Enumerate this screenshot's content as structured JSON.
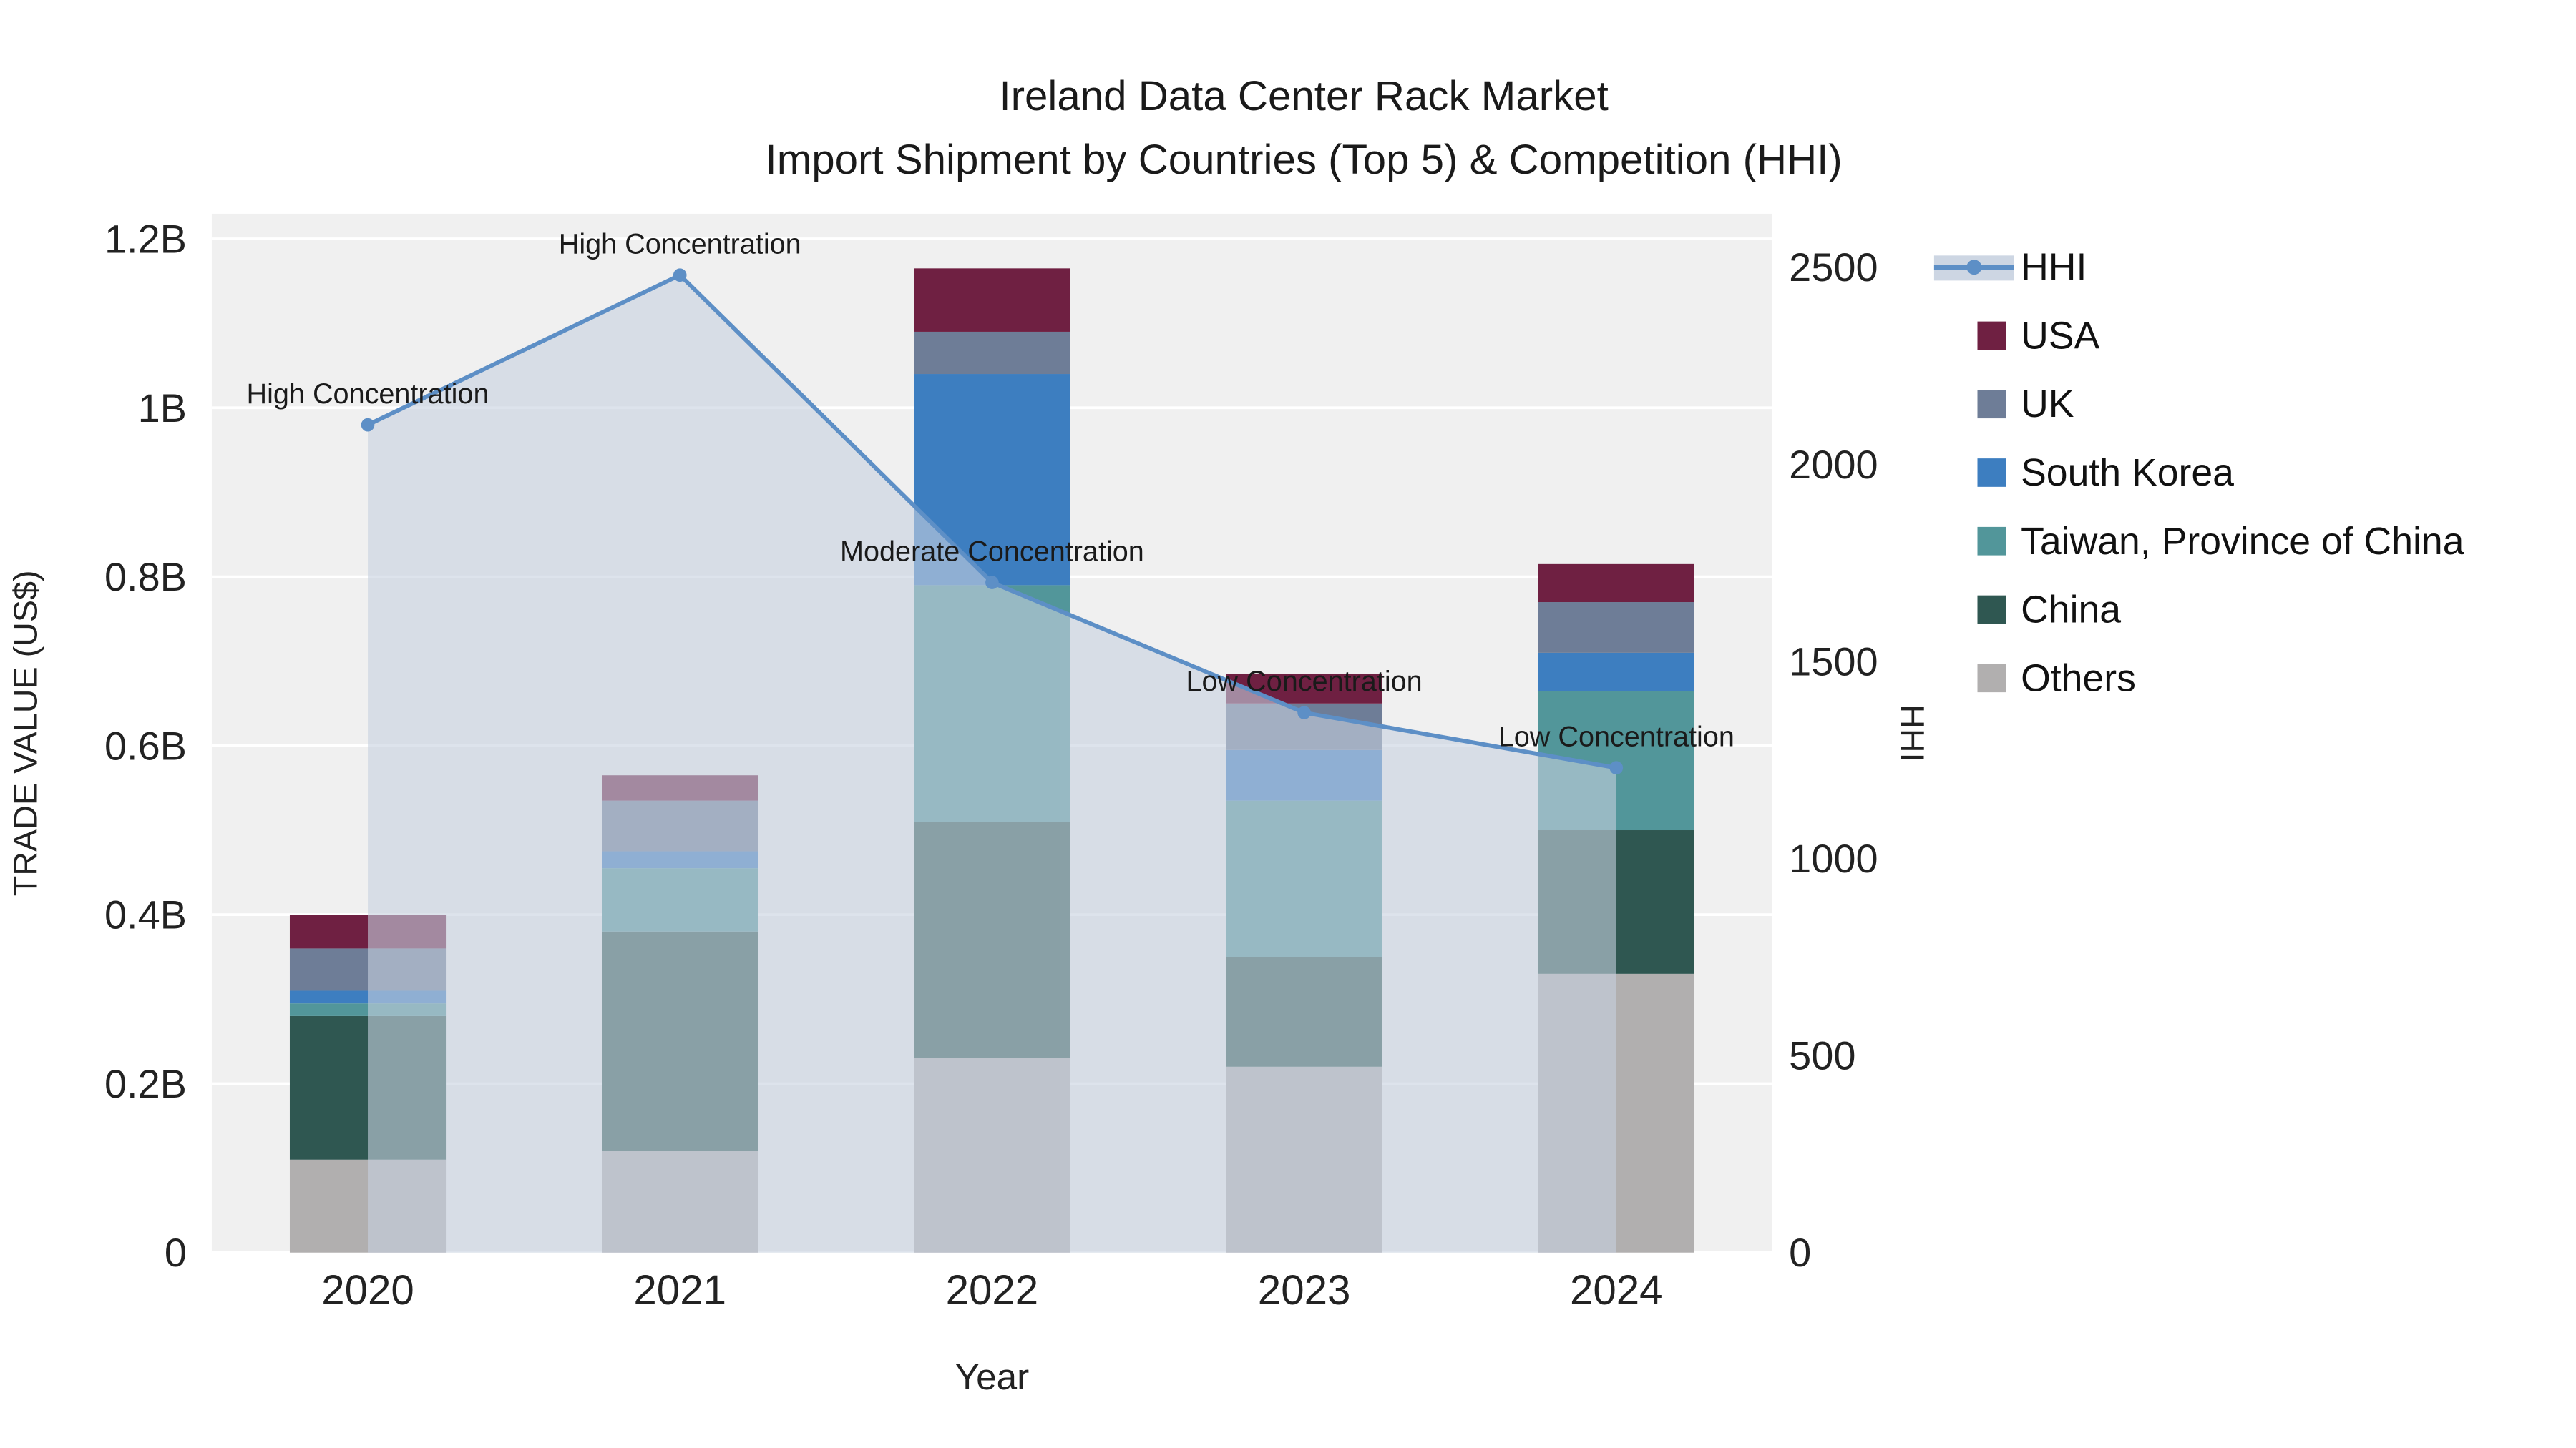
{
  "title": {
    "line1": "Ireland Data Center Rack Market",
    "line2": "Import Shipment by Countries (Top 5) & Competition (HHI)"
  },
  "axes": {
    "x": {
      "title": "Year"
    },
    "y_left": {
      "title": "TRADE VALUE (US$)",
      "tick_labels": [
        "0",
        "0.2B",
        "0.4B",
        "0.6B",
        "0.8B",
        "1B",
        "1.2B"
      ],
      "tick_values": [
        0,
        0.2,
        0.4,
        0.6,
        0.8,
        1.0,
        1.2
      ],
      "range": [
        0,
        1.2
      ],
      "unit": "billions US$"
    },
    "y_right": {
      "title": "HHI",
      "tick_labels": [
        "0",
        "500",
        "1000",
        "1500",
        "2000",
        "2500"
      ],
      "tick_values": [
        0,
        500,
        1000,
        1500,
        2000,
        2500
      ],
      "range": [
        0,
        2500
      ]
    }
  },
  "chart_data": {
    "type": "combo_stacked_bar_line",
    "title": "Ireland Data Center Rack Market — Import Shipment by Countries (Top 5) & Competition (HHI)",
    "categories": [
      "2020",
      "2021",
      "2022",
      "2023",
      "2024"
    ],
    "value_unit": "billions US$",
    "bar_series_bottom_to_top": [
      {
        "name": "Others",
        "color": "#b1afaf",
        "values": [
          0.11,
          0.12,
          0.23,
          0.22,
          0.33
        ]
      },
      {
        "name": "China",
        "color": "#2f5751",
        "values": [
          0.17,
          0.26,
          0.28,
          0.13,
          0.17
        ]
      },
      {
        "name": "Taiwan, Province of China",
        "color": "#52969a",
        "values": [
          0.015,
          0.075,
          0.28,
          0.185,
          0.165
        ]
      },
      {
        "name": "South Korea",
        "color": "#3d7ec0",
        "values": [
          0.015,
          0.02,
          0.25,
          0.06,
          0.045
        ]
      },
      {
        "name": "UK",
        "color": "#6e7d97",
        "values": [
          0.05,
          0.06,
          0.05,
          0.055,
          0.06
        ]
      },
      {
        "name": "USA",
        "color": "#6f2042",
        "values": [
          0.04,
          0.03,
          0.075,
          0.035,
          0.045
        ]
      }
    ],
    "bar_totals": [
      0.4,
      0.565,
      1.165,
      0.685,
      0.815
    ],
    "line_series": {
      "name": "HHI",
      "color": "#5d8fc6",
      "fill_color": "rgba(198,209,223,0.6)",
      "legend_fill_color": "#cdd6e3",
      "values": [
        2100,
        2480,
        1700,
        1370,
        1230
      ]
    },
    "annotations": [
      {
        "category": "2020",
        "text": "High Concentration"
      },
      {
        "category": "2021",
        "text": "High Concentration"
      },
      {
        "category": "2022",
        "text": "Moderate Concentration"
      },
      {
        "category": "2023",
        "text": "Low Concentration"
      },
      {
        "category": "2024",
        "text": "Low Concentration"
      }
    ],
    "axis_ranges": {
      "left": [
        0,
        1.2
      ],
      "right": [
        0,
        2500
      ]
    },
    "legend_position": "right",
    "grid": true,
    "plot_background": "#f0f0f0",
    "grid_color": "#ffffff"
  },
  "legend": {
    "items": [
      {
        "label": "HHI",
        "type": "line",
        "color": "#5d8fc6"
      },
      {
        "label": "USA",
        "type": "square",
        "color": "#6f2042"
      },
      {
        "label": "UK",
        "type": "square",
        "color": "#6e7d97"
      },
      {
        "label": "South Korea",
        "type": "square",
        "color": "#3d7ec0"
      },
      {
        "label": "Taiwan, Province of China",
        "type": "square",
        "color": "#52969a"
      },
      {
        "label": "China",
        "type": "square",
        "color": "#2f5751"
      },
      {
        "label": "Others",
        "type": "square",
        "color": "#b1afaf"
      }
    ]
  }
}
